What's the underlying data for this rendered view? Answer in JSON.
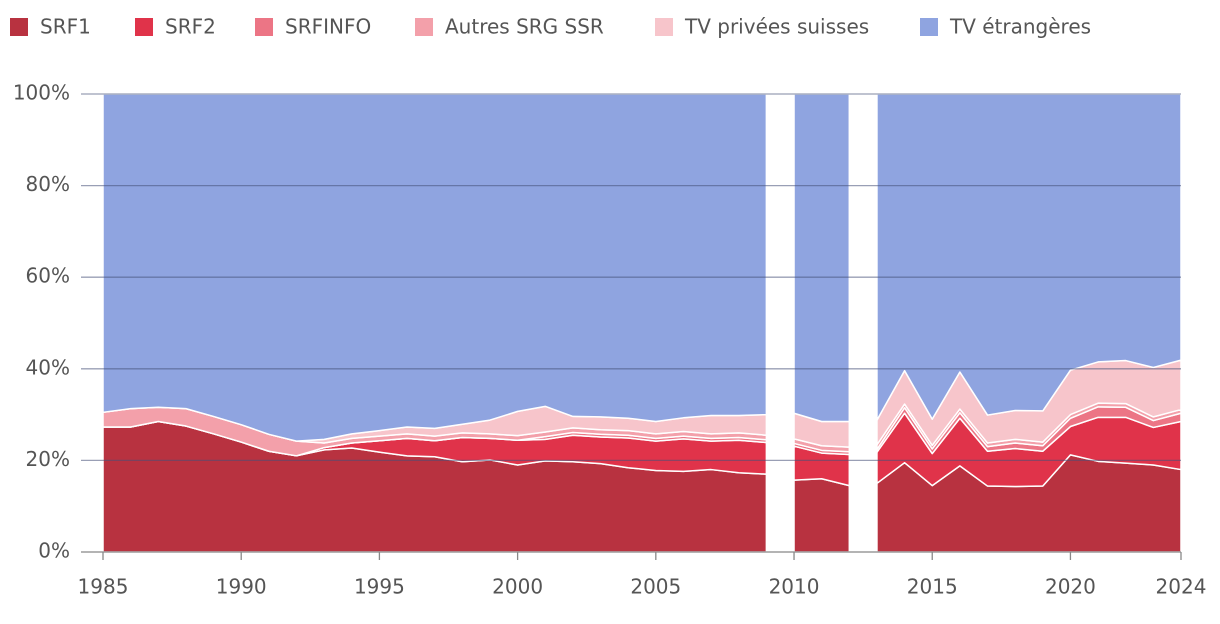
{
  "chart_data": {
    "type": "stacked_area",
    "x": [
      1985,
      1986,
      1987,
      1988,
      1989,
      1990,
      1991,
      1992,
      1993,
      1994,
      1995,
      1996,
      1997,
      1998,
      1999,
      2000,
      2001,
      2002,
      2003,
      2004,
      2005,
      2006,
      2007,
      2008,
      2009,
      null,
      2010,
      2011,
      2012,
      null,
      2013,
      2014,
      2015,
      2016,
      2017,
      2018,
      2019,
      2020,
      2021,
      2022,
      2023,
      2024
    ],
    "series": [
      {
        "name": "SRF1",
        "color": "#b83240",
        "values": [
          27.3,
          27.3,
          28.5,
          27.5,
          25.8,
          24,
          22,
          21,
          22.3,
          22.7,
          21.8,
          21,
          20.8,
          19.7,
          20.1,
          19,
          19.9,
          19.7,
          19.3,
          18.4,
          17.8,
          17.6,
          18,
          17.3,
          17,
          null,
          15.7,
          16,
          14.5,
          null,
          15,
          19.5,
          14.5,
          18.8,
          14.4,
          14.3,
          14.4,
          21.2,
          19.8,
          19.4,
          19,
          18
        ]
      },
      {
        "name": "SRF2",
        "color": "#e0334a",
        "values": [
          0,
          0,
          0,
          0,
          0,
          0,
          0,
          0,
          0.5,
          1.1,
          2.5,
          3.8,
          3.5,
          5.3,
          4.7,
          5.4,
          4.7,
          5.8,
          5.8,
          6.5,
          6.4,
          7.1,
          6.2,
          7.1,
          6.9,
          null,
          7.4,
          5.6,
          6.8,
          null,
          6.8,
          10.8,
          7,
          10.4,
          7.6,
          8.3,
          7.6,
          6.2,
          9.6,
          10,
          8.2,
          10.5
        ]
      },
      {
        "name": "SRFINFO",
        "color": "#ec7585",
        "values": [
          0,
          0,
          0,
          0,
          0,
          0,
          0,
          0,
          0,
          0,
          0,
          0,
          0,
          0,
          0,
          0,
          0.6,
          0.6,
          0.6,
          0.6,
          0.6,
          0.6,
          0.6,
          0.6,
          0.6,
          null,
          0.6,
          0.6,
          0.6,
          null,
          0.6,
          1.2,
          1,
          1.2,
          1,
          1.2,
          1.2,
          1.8,
          2.3,
          2.2,
          1.5,
          1.8
        ]
      },
      {
        "name": "Autres SRG SSR",
        "color": "#f3a0aa",
        "values": [
          3.2,
          4,
          3.1,
          3.8,
          3.8,
          3.8,
          3.7,
          3.2,
          1,
          1,
          1,
          1,
          1,
          1,
          1,
          1,
          1,
          1,
          1,
          1,
          1,
          1,
          1,
          1,
          1,
          null,
          1,
          1,
          1,
          null,
          1,
          0.8,
          0.8,
          0.8,
          0.8,
          0.8,
          0.8,
          0.8,
          0.8,
          0.8,
          0.8,
          0.8
        ]
      },
      {
        "name": "TV privées suisses",
        "color": "#f7c5cb",
        "values": [
          0,
          0,
          0,
          0,
          0,
          0,
          0,
          0,
          0.8,
          1,
          1.2,
          1.5,
          1.7,
          1.9,
          3,
          5.3,
          5.6,
          2.5,
          2.8,
          2.7,
          2.7,
          3,
          4,
          3.8,
          4.5,
          null,
          5.6,
          5.3,
          5.6,
          null,
          5.4,
          7.3,
          5.7,
          8.1,
          6.1,
          6.3,
          6.8,
          9.7,
          9,
          9.4,
          10.8,
          10.8
        ]
      },
      {
        "name": "TV étrangères",
        "color": "#8fa4e0",
        "values": [
          69.5,
          68.7,
          68.4,
          68.7,
          70.4,
          72.2,
          74.3,
          75.8,
          75.4,
          74.2,
          73.5,
          72.7,
          73,
          72.1,
          71.2,
          69.3,
          68.2,
          70.4,
          70.5,
          70.8,
          71.5,
          70.7,
          70.2,
          70.2,
          70,
          null,
          69.7,
          71.5,
          71.5,
          null,
          71.2,
          60.4,
          71,
          60.7,
          70.1,
          69.1,
          69.2,
          60.3,
          58.5,
          58.2,
          59.7,
          58.1
        ]
      }
    ],
    "xlim": [
      1985,
      2024
    ],
    "xticks": [
      1985,
      1990,
      1995,
      2000,
      2005,
      2010,
      2015,
      2020,
      2024
    ],
    "ylim": [
      0,
      100
    ],
    "yticks": [
      {
        "value": 0,
        "label": "0%"
      },
      {
        "value": 20,
        "label": "20%"
      },
      {
        "value": 40,
        "label": "40%"
      },
      {
        "value": 60,
        "label": "60%"
      },
      {
        "value": 80,
        "label": "80%"
      },
      {
        "value": 100,
        "label": "100%"
      }
    ],
    "grid": true,
    "legend": "top"
  }
}
